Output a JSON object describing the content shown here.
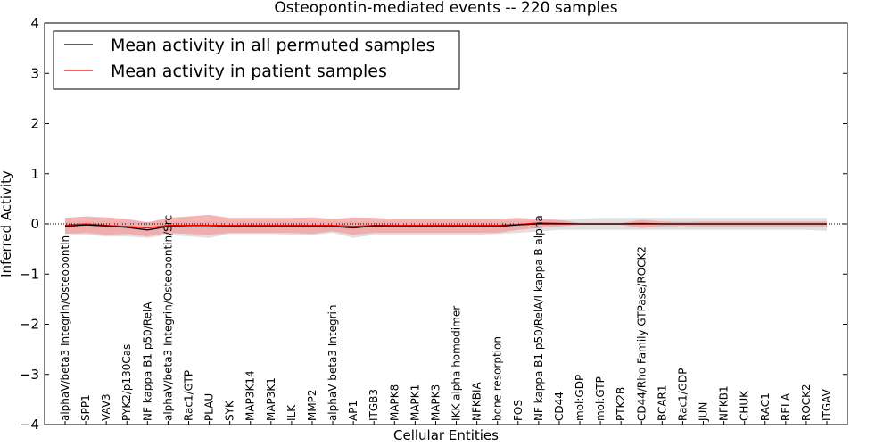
{
  "chart_data": {
    "type": "line",
    "title": "Osteopontin-mediated events -- 220 samples",
    "xlabel": "Cellular Entities",
    "ylabel": "Inferred Activity",
    "ylim": [
      -4,
      4
    ],
    "yticks": [
      -4,
      -3,
      -2,
      -1,
      0,
      1,
      2,
      3,
      4
    ],
    "ytick_labels": [
      "−4",
      "−3",
      "−2",
      "−1",
      "0",
      "1",
      "2",
      "3",
      "4"
    ],
    "legend": {
      "position": "upper-left",
      "entries": [
        "Mean activity in all permuted samples",
        "Mean activity in patient samples"
      ]
    },
    "colors": {
      "permuted": "#000000",
      "patient": "#ff0000",
      "patient_band": "#f4a0a0",
      "permuted_band": "#cccccc",
      "zero_line": "#000000"
    },
    "categories": [
      "alphaV/beta3 Integrin/Osteopontin",
      "SPP1",
      "VAV3",
      "PYK2/p130Cas",
      "NF kappa B1 p50/RelA",
      "alphaV/beta3 Integrin/Osteopontin/Src",
      "Rac1/GTP",
      "PLAU",
      "SYK",
      "MAP3K14",
      "MAP3K1",
      "ILK",
      "MMP2",
      "alphaV beta3 Integrin",
      "AP1",
      "ITGB3",
      "MAPK8",
      "MAPK1",
      "MAPK3",
      "IKK alpha homodimer",
      "NFKBIA",
      "bone resorption",
      "FOS",
      "NF kappa B1 p50/RelA/I kappa B alpha",
      "CD44",
      "mol:GDP",
      "mol:GTP",
      "PTK2B",
      "CD44/Rho Family GTPase/ROCK2",
      "BCAR1",
      "Rac1/GDP",
      "JUN",
      "NFKB1",
      "CHUK",
      "RAC1",
      "RELA",
      "ROCK2",
      "ITGAV"
    ],
    "series": [
      {
        "name": "Mean activity in all permuted samples",
        "values": [
          -0.05,
          -0.02,
          -0.04,
          -0.07,
          -0.12,
          -0.05,
          -0.06,
          -0.06,
          -0.05,
          -0.05,
          -0.05,
          -0.05,
          -0.05,
          -0.05,
          -0.08,
          -0.04,
          -0.05,
          -0.05,
          -0.05,
          -0.05,
          -0.05,
          -0.05,
          -0.02,
          0.0,
          0.0,
          0.0,
          0.0,
          0.0,
          0.0,
          0.0,
          0.0,
          0.0,
          0.0,
          0.0,
          0.0,
          0.0,
          0.0,
          0.0
        ]
      },
      {
        "name": "Mean activity in patient samples",
        "values": [
          -0.03,
          0.0,
          -0.03,
          -0.05,
          -0.08,
          -0.03,
          -0.03,
          -0.03,
          -0.03,
          -0.03,
          -0.03,
          -0.03,
          -0.03,
          -0.03,
          -0.05,
          -0.03,
          -0.03,
          -0.03,
          -0.03,
          -0.03,
          -0.03,
          -0.03,
          -0.01,
          0.02,
          0.01,
          0.0,
          0.0,
          0.0,
          0.01,
          0.0,
          0.0,
          0.0,
          0.0,
          0.0,
          0.0,
          0.0,
          0.0,
          0.0
        ]
      }
    ],
    "patient_band": {
      "upper": [
        0.12,
        0.15,
        0.13,
        0.1,
        0.03,
        0.12,
        0.15,
        0.18,
        0.12,
        0.12,
        0.12,
        0.12,
        0.13,
        0.1,
        0.13,
        0.12,
        0.1,
        0.1,
        0.1,
        0.1,
        0.1,
        0.1,
        0.12,
        0.1,
        0.08,
        0.02,
        0.02,
        0.02,
        0.08,
        0.05,
        0.04,
        0.05,
        0.05,
        0.05,
        0.05,
        0.05,
        0.05,
        0.05
      ],
      "lower": [
        -0.2,
        -0.18,
        -0.22,
        -0.2,
        -0.25,
        -0.18,
        -0.2,
        -0.22,
        -0.18,
        -0.18,
        -0.18,
        -0.18,
        -0.2,
        -0.15,
        -0.22,
        -0.18,
        -0.18,
        -0.18,
        -0.18,
        -0.18,
        -0.18,
        -0.18,
        -0.12,
        -0.08,
        -0.05,
        -0.02,
        -0.02,
        -0.02,
        -0.08,
        -0.05,
        -0.04,
        -0.05,
        -0.05,
        -0.05,
        -0.05,
        -0.05,
        -0.05,
        -0.05
      ]
    },
    "permuted_band": {
      "upper": [
        0.05,
        0.05,
        0.05,
        0.05,
        0.04,
        0.05,
        0.05,
        0.05,
        0.05,
        0.05,
        0.05,
        0.05,
        0.05,
        0.05,
        0.05,
        0.05,
        0.05,
        0.05,
        0.05,
        0.05,
        0.05,
        0.05,
        0.05,
        0.06,
        0.08,
        0.1,
        0.12,
        0.12,
        0.12,
        0.12,
        0.12,
        0.12,
        0.12,
        0.12,
        0.12,
        0.12,
        0.12,
        0.12
      ],
      "lower": [
        -0.2,
        -0.22,
        -0.25,
        -0.25,
        -0.28,
        -0.22,
        -0.25,
        -0.28,
        -0.2,
        -0.2,
        -0.2,
        -0.22,
        -0.22,
        -0.18,
        -0.28,
        -0.22,
        -0.22,
        -0.22,
        -0.22,
        -0.22,
        -0.22,
        -0.2,
        -0.18,
        -0.15,
        -0.12,
        -0.12,
        -0.12,
        -0.12,
        -0.12,
        -0.12,
        -0.12,
        -0.12,
        -0.12,
        -0.12,
        -0.12,
        -0.12,
        -0.12,
        -0.14
      ]
    }
  }
}
